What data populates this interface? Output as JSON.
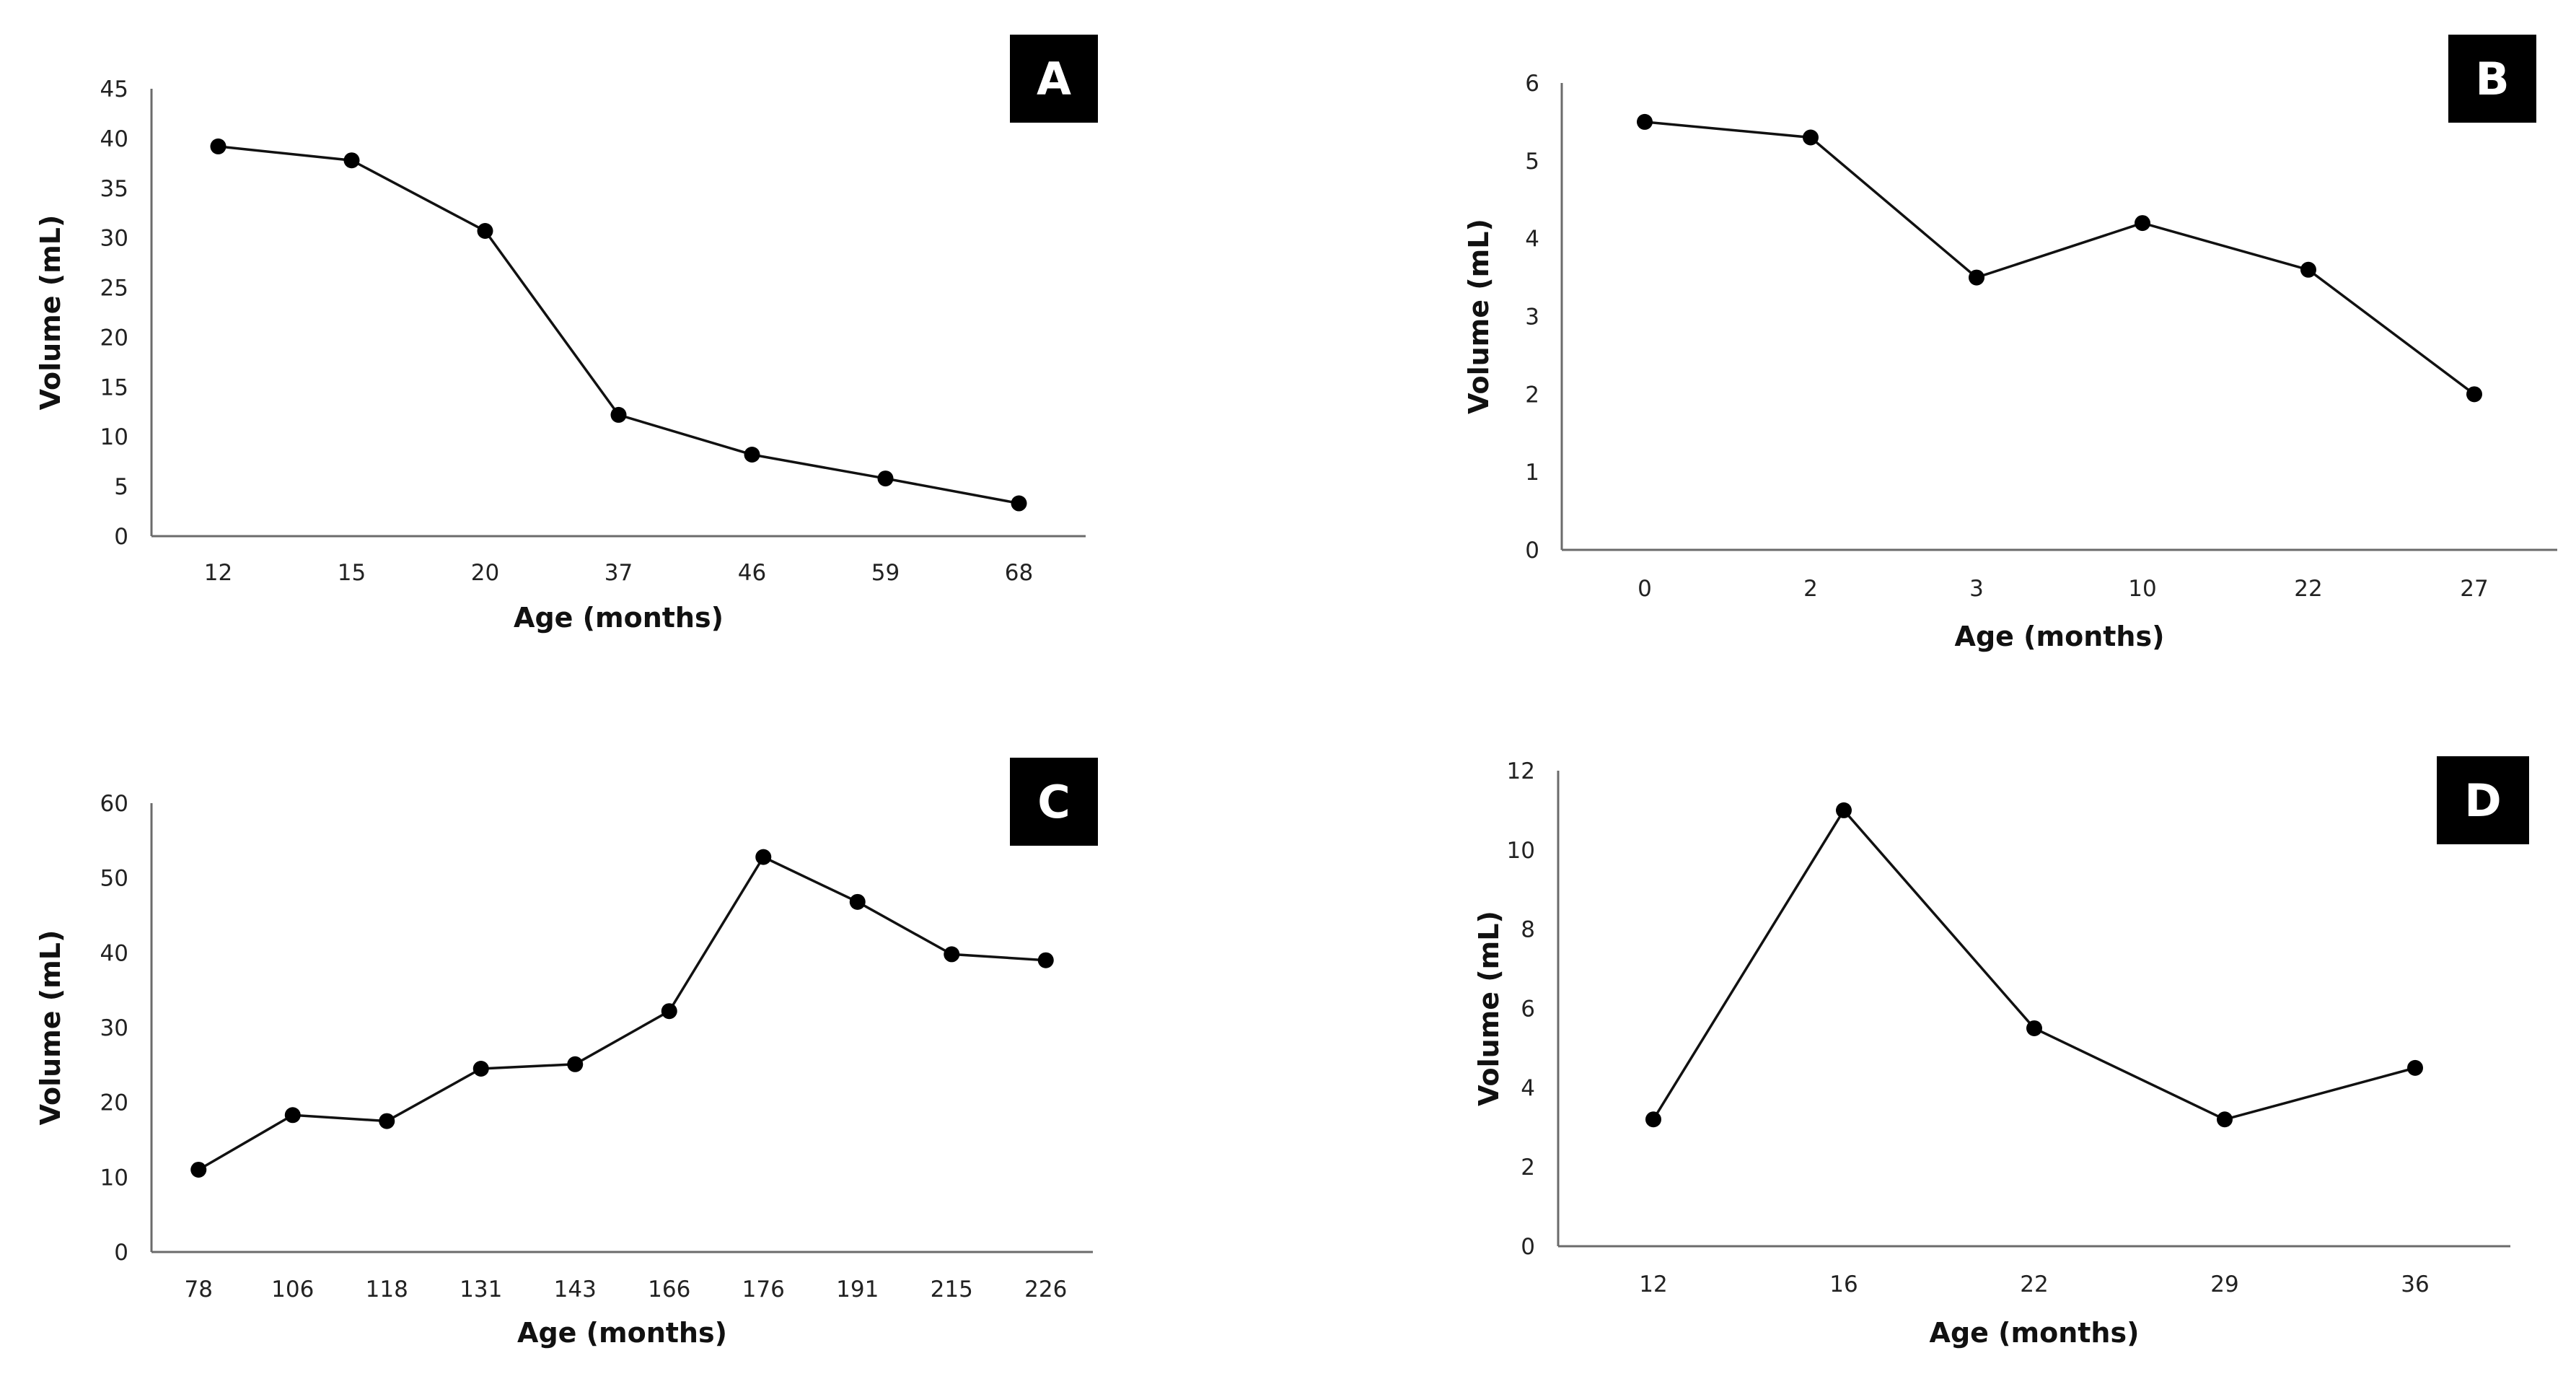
{
  "chart_data": [
    {
      "type": "line",
      "panel_label": "A",
      "x": [
        "12",
        "15",
        "20",
        "37",
        "46",
        "59",
        "68"
      ],
      "values": [
        39.2,
        37.8,
        30.7,
        12.2,
        8.2,
        5.8,
        3.3
      ],
      "yticks": [
        "0",
        "5",
        "10",
        "15",
        "20",
        "25",
        "30",
        "35",
        "40",
        "45"
      ],
      "ylim": [
        0,
        45
      ],
      "xlabel": "Age (months)",
      "ylabel": "Volume (mL)"
    },
    {
      "type": "line",
      "panel_label": "B",
      "x": [
        "0",
        "2",
        "3",
        "10",
        "22",
        "27"
      ],
      "values": [
        5.5,
        5.3,
        3.5,
        4.2,
        3.6,
        2.0
      ],
      "yticks": [
        "0",
        "1",
        "2",
        "3",
        "4",
        "5",
        "6"
      ],
      "ylim": [
        0,
        6
      ],
      "xlabel": "Age (months)",
      "ylabel": "Volume (mL)"
    },
    {
      "type": "line",
      "panel_label": "C",
      "x": [
        "78",
        "106",
        "118",
        "131",
        "143",
        "166",
        "176",
        "191",
        "215",
        "226"
      ],
      "values": [
        11,
        18.3,
        17.5,
        24.5,
        25.1,
        32.2,
        52.8,
        46.8,
        39.8,
        39.0
      ],
      "yticks": [
        "0",
        "10",
        "20",
        "30",
        "40",
        "50",
        "60"
      ],
      "ylim": [
        0,
        60
      ],
      "xlabel": "Age (months)",
      "ylabel": "Volume (mL)"
    },
    {
      "type": "line",
      "panel_label": "D",
      "x": [
        "12",
        "16",
        "22",
        "29",
        "36"
      ],
      "values": [
        3.2,
        11.0,
        5.5,
        3.2,
        4.5
      ],
      "yticks": [
        "0",
        "2",
        "4",
        "6",
        "8",
        "10",
        "12"
      ],
      "ylim": [
        0,
        12
      ],
      "xlabel": "Age (months)",
      "ylabel": "Volume (mL)"
    }
  ]
}
